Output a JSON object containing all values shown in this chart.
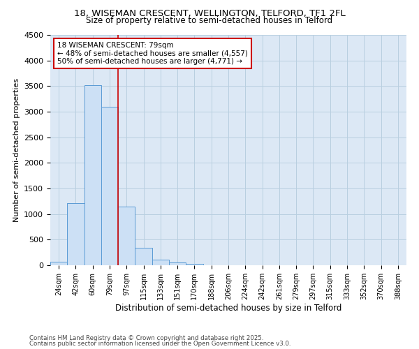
{
  "title1": "18, WISEMAN CRESCENT, WELLINGTON, TELFORD, TF1 2FL",
  "title2": "Size of property relative to semi-detached houses in Telford",
  "xlabel": "Distribution of semi-detached houses by size in Telford",
  "ylabel": "Number of semi-detached properties",
  "categories": [
    "24sqm",
    "42sqm",
    "60sqm",
    "79sqm",
    "97sqm",
    "115sqm",
    "133sqm",
    "151sqm",
    "170sqm",
    "188sqm",
    "206sqm",
    "224sqm",
    "242sqm",
    "261sqm",
    "279sqm",
    "297sqm",
    "315sqm",
    "333sqm",
    "352sqm",
    "370sqm",
    "388sqm"
  ],
  "values": [
    75,
    1220,
    3520,
    3100,
    1150,
    335,
    105,
    55,
    30,
    0,
    0,
    0,
    0,
    0,
    0,
    0,
    0,
    0,
    0,
    0,
    0
  ],
  "bar_color": "#cce0f5",
  "bar_edge_color": "#5b9bd5",
  "vline_x_index": 3,
  "vline_color": "#cc0000",
  "annotation_title": "18 WISEMAN CRESCENT: 79sqm",
  "annotation_line1": "← 48% of semi-detached houses are smaller (4,557)",
  "annotation_line2": "50% of semi-detached houses are larger (4,771) →",
  "annotation_box_color": "#cc0000",
  "ylim": [
    0,
    4500
  ],
  "yticks": [
    0,
    500,
    1000,
    1500,
    2000,
    2500,
    3000,
    3500,
    4000,
    4500
  ],
  "footnote1": "Contains HM Land Registry data © Crown copyright and database right 2025.",
  "footnote2": "Contains public sector information licensed under the Open Government Licence v3.0.",
  "bg_color": "#ffffff",
  "plot_bg_color": "#dce8f5",
  "grid_color": "#b8cfe0"
}
